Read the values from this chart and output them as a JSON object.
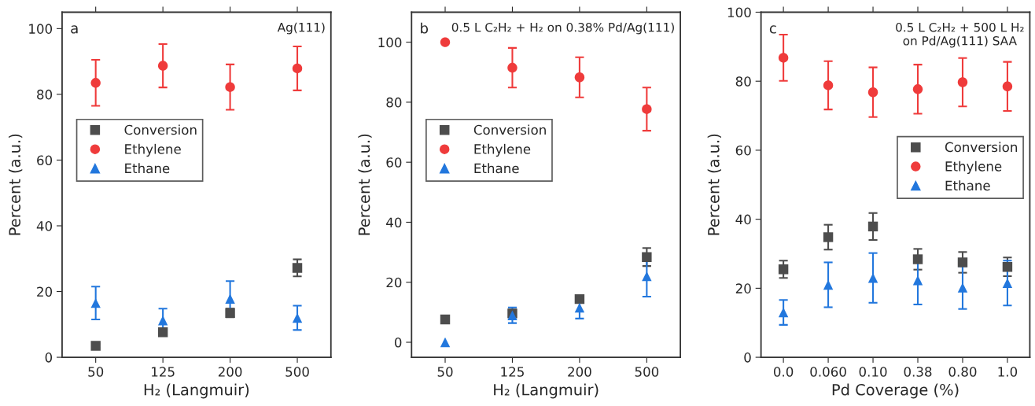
{
  "chart_data": [
    {
      "type": "scatter",
      "ylabel": "Percent (a.u.)",
      "xlabel": "H₂ (Langmuir)",
      "annotations": [
        "a",
        "Ag(111)"
      ],
      "categories": [
        "50",
        "125",
        "200",
        "500"
      ],
      "ylim": [
        0,
        105
      ],
      "yticks": [
        0,
        20,
        40,
        60,
        80,
        100
      ],
      "grid": false,
      "legend": "center left",
      "series": [
        {
          "name": "Conversion",
          "color": "#4d4d4d",
          "marker": "square",
          "values": [
            3.5,
            7.6,
            13.5,
            27.2
          ],
          "errors": [
            0.6,
            0.7,
            1.3,
            2.6
          ]
        },
        {
          "name": "Ethylene",
          "color": "#ef3b3b",
          "marker": "circle",
          "values": [
            83.5,
            88.7,
            82.2,
            87.9
          ],
          "errors": [
            7,
            6.6,
            6.9,
            6.7
          ]
        },
        {
          "name": "Ethane",
          "color": "#2277dd",
          "marker": "triangle",
          "values": [
            16.5,
            11.2,
            17.8,
            12
          ],
          "errors": [
            5,
            3.6,
            5.4,
            3.7
          ]
        }
      ]
    },
    {
      "type": "scatter",
      "ylabel": "Percent (a.u.)",
      "xlabel": "H₂ (Langmuir)",
      "annotations": [
        "b",
        "0.5 L C₂H₂ + H₂ on 0.38% Pd/Ag(111)"
      ],
      "categories": [
        "50",
        "125",
        "200",
        "500"
      ],
      "ylim": [
        -5,
        110
      ],
      "yticks": [
        0,
        20,
        40,
        60,
        80,
        100
      ],
      "grid": false,
      "legend": "center left",
      "series": [
        {
          "name": "Conversion",
          "color": "#4d4d4d",
          "marker": "square",
          "values": [
            7.6,
            9.6,
            14.4,
            28.4
          ],
          "errors": [
            0.5,
            1.2,
            1,
            3
          ]
        },
        {
          "name": "Ethylene",
          "color": "#ef3b3b",
          "marker": "circle",
          "values": [
            100,
            91.5,
            88.3,
            77.7
          ],
          "errors": [
            null,
            6.6,
            6.7,
            7.2
          ]
        },
        {
          "name": "Ethane",
          "color": "#2277dd",
          "marker": "triangle",
          "values": [
            0,
            9,
            11.5,
            22
          ],
          "errors": [
            null,
            2.6,
            3.6,
            6.8
          ]
        }
      ]
    },
    {
      "type": "scatter",
      "ylabel": "Percent (a.u.)",
      "xlabel": "Pd Coverage (%)",
      "annotations": [
        "c",
        "0.5 L C₂H₂ + 500 L H₂\non Pd/Ag(111) SAA"
      ],
      "categories": [
        "0.0",
        "0.060",
        "0.10",
        "0.38",
        "0.80",
        "1.0"
      ],
      "ylim": [
        0,
        100
      ],
      "yticks": [
        0,
        20,
        40,
        60,
        80,
        100
      ],
      "grid": false,
      "legend": "center right",
      "series": [
        {
          "name": "Conversion",
          "color": "#4d4d4d",
          "marker": "square",
          "values": [
            25.5,
            34.8,
            37.9,
            28.4,
            27.5,
            26.2
          ],
          "errors": [
            2.5,
            3.6,
            3.9,
            3,
            3,
            2.7
          ]
        },
        {
          "name": "Ethylene",
          "color": "#ef3b3b",
          "marker": "circle",
          "values": [
            86.8,
            78.8,
            76.8,
            77.7,
            79.7,
            78.5
          ],
          "errors": [
            6.7,
            7,
            7.2,
            7.1,
            7,
            7.1
          ]
        },
        {
          "name": "Ethane",
          "color": "#2277dd",
          "marker": "triangle",
          "values": [
            13,
            21,
            23,
            22.3,
            20.2,
            21.5
          ],
          "errors": [
            3.6,
            6.5,
            7.2,
            7,
            6.2,
            6.5
          ]
        }
      ]
    }
  ]
}
